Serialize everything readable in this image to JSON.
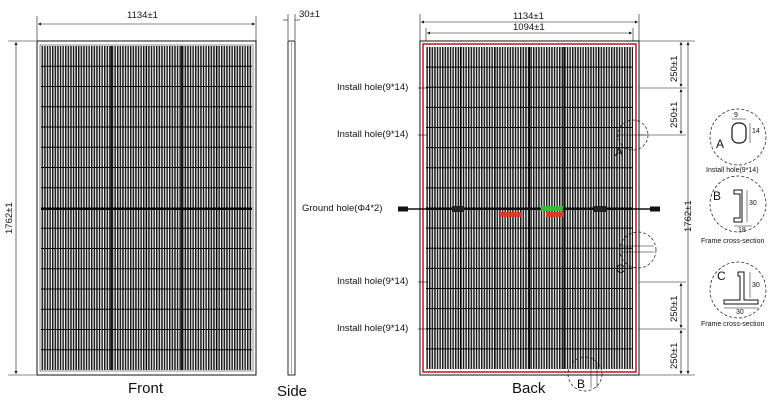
{
  "front": {
    "caption": "Front",
    "width_dim": "1134±1",
    "height_dim": "1762±1"
  },
  "side": {
    "caption": "Side",
    "thickness_dim": "30±1"
  },
  "back": {
    "caption": "Back",
    "width_dim": "1134±1",
    "inner_width_dim": "1094±1",
    "height_dim": "1762±1",
    "seg_top_outer": "250±1",
    "seg_top_inner": "250±1",
    "seg_bottom_inner": "250±1",
    "seg_bottom_outer": "250±1",
    "labels": {
      "install_hole_1": "Install hole(9*14)",
      "install_hole_2": "Install hole(9*14)",
      "ground_hole": "Ground hole(Φ4*2)",
      "install_hole_3": "Install hole(9*14)",
      "install_hole_4": "Install hole(9*14)"
    },
    "markers": {
      "a": "A",
      "b": "B",
      "c": "C"
    },
    "cable_colors": {
      "negative": "#d83a2b",
      "positive": "#3cb83a",
      "frame_outline": "#c0272d"
    }
  },
  "details": {
    "a": {
      "letter": "A",
      "dim_w": "9",
      "dim_h": "14",
      "caption": "Install hole(9*14)"
    },
    "b": {
      "letter": "B",
      "dim_h": "30",
      "dim_w": "18",
      "caption": "Frame cross-section"
    },
    "c": {
      "letter": "C",
      "dim_h": "30",
      "dim_w": "30",
      "caption": "Frame cross-section"
    }
  }
}
